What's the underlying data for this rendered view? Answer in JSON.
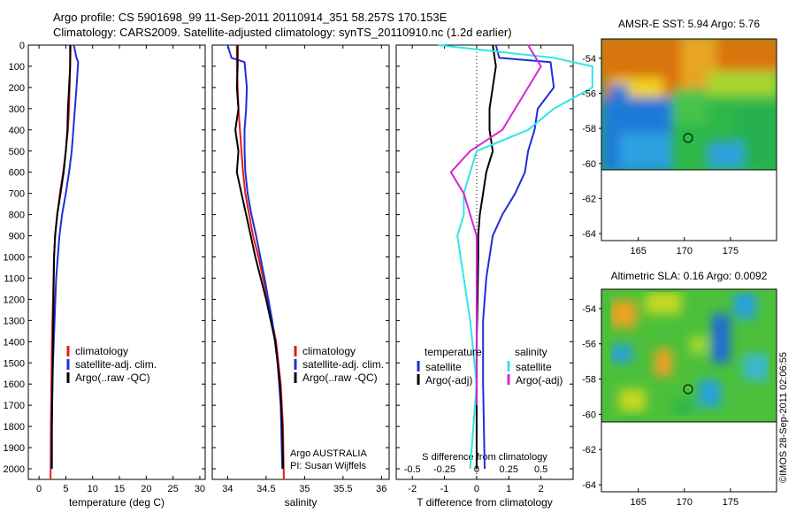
{
  "title_line1": "Argo profile: CS 5901698_99 11-Sep-2011 20110914_351 58.257S 170.153E",
  "title_line2": "Climatology: CARS2009. Satellite-adjusted climatology: synTS_20110910.nc (1.2d earlier)",
  "watermark": "©IMOS 28-Sep-2011 02:06:55",
  "colors": {
    "climatology": "#e41a1c",
    "satellite": "#1f2fd6",
    "argo": "#000000",
    "sat_salinity": "#2ee6e6",
    "argo_salinity": "#d428d4"
  },
  "chart_data": [
    {
      "type": "line",
      "id": "temperature",
      "xlabel": "temperature (deg C)",
      "xlim": [
        -2,
        31
      ],
      "ylim": [
        2050,
        0
      ],
      "y_reversed": true,
      "xticks": [
        "0",
        "5",
        "10",
        "15",
        "20",
        "25",
        "30"
      ],
      "yticks": [
        "0",
        "100",
        "200",
        "300",
        "400",
        "500",
        "600",
        "700",
        "800",
        "900",
        "1000",
        "1100",
        "1200",
        "1300",
        "1400",
        "1500",
        "1600",
        "1700",
        "1800",
        "1900",
        "2000"
      ],
      "legend": [
        "climatology",
        "satellite-adj. clim.",
        "Argo(..raw -QC)"
      ],
      "series": [
        {
          "name": "climatology",
          "color": "#e41a1c",
          "x": [
            5.9,
            5.8,
            5.7,
            5.6,
            5.4,
            5.0,
            4.5,
            3.9,
            3.4,
            3.0,
            2.8,
            2.6,
            2.4,
            2.3,
            2.2,
            2.15
          ],
          "y": [
            0,
            100,
            200,
            300,
            400,
            500,
            600,
            700,
            800,
            900,
            1000,
            1200,
            1400,
            1600,
            1800,
            2050
          ]
        },
        {
          "name": "satellite-adj. clim.",
          "color": "#1f2fd6",
          "x": [
            6.5,
            7.0,
            7.3,
            7.0,
            6.7,
            6.4,
            6.1,
            5.6,
            5.0,
            4.3,
            3.8,
            3.2,
            2.9,
            2.6,
            2.4,
            2.3
          ],
          "y": [
            0,
            60,
            80,
            200,
            300,
            400,
            500,
            600,
            700,
            800,
            900,
            1100,
            1300,
            1500,
            1700,
            2000
          ]
        },
        {
          "name": "Argo(..raw -QC)",
          "color": "#000000",
          "x": [
            5.8,
            5.8,
            5.6,
            5.4,
            5.3,
            5.0,
            4.6,
            4.0,
            3.4,
            3.0,
            2.8,
            2.7,
            2.6,
            2.5,
            2.4,
            2.4
          ],
          "y": [
            0,
            100,
            200,
            300,
            400,
            500,
            600,
            700,
            800,
            900,
            1000,
            1200,
            1400,
            1600,
            1800,
            2000
          ]
        }
      ]
    },
    {
      "type": "line",
      "id": "salinity",
      "xlabel": "salinity",
      "xlim": [
        33.8,
        36.1
      ],
      "ylim": [
        2050,
        0
      ],
      "y_reversed": true,
      "xticks": [
        "34",
        "34.5",
        "35",
        "35.5",
        "36"
      ],
      "legend": [
        "climatology",
        "satellite-adj. clim.",
        "Argo(..raw -QC)"
      ],
      "annotation": [
        "Argo AUSTRALIA",
        "PI: Susan Wijffels"
      ],
      "series": [
        {
          "name": "climatology",
          "color": "#e41a1c",
          "x": [
            34.12,
            34.12,
            34.13,
            34.14,
            34.16,
            34.18,
            34.2,
            34.23,
            34.28,
            34.33,
            34.4,
            34.52,
            34.63,
            34.69,
            34.72,
            34.73
          ],
          "y": [
            0,
            100,
            200,
            300,
            400,
            500,
            600,
            700,
            800,
            900,
            1000,
            1200,
            1400,
            1600,
            1800,
            2050
          ]
        },
        {
          "name": "satellite-adj. clim.",
          "color": "#1f2fd6",
          "x": [
            34.0,
            34.05,
            34.22,
            34.25,
            34.24,
            34.22,
            34.22,
            34.23,
            34.26,
            34.31,
            34.37,
            34.48,
            34.58,
            34.65,
            34.69,
            34.71
          ],
          "y": [
            0,
            60,
            80,
            200,
            300,
            400,
            500,
            600,
            700,
            800,
            900,
            1100,
            1300,
            1500,
            1700,
            2000
          ]
        },
        {
          "name": "Argo(..raw -QC)",
          "color": "#000000",
          "x": [
            34.13,
            34.13,
            34.12,
            34.14,
            34.1,
            34.14,
            34.12,
            34.18,
            34.24,
            34.3,
            34.36,
            34.5,
            34.62,
            34.68,
            34.71,
            34.72
          ],
          "y": [
            0,
            100,
            200,
            300,
            400,
            500,
            600,
            700,
            800,
            900,
            1000,
            1200,
            1400,
            1600,
            1800,
            2000
          ]
        }
      ]
    },
    {
      "type": "line",
      "id": "difference",
      "xlabel": "T difference from climatology",
      "x2label": "S difference from climatology",
      "xlim": [
        -2.5,
        3
      ],
      "ylim": [
        2050,
        0
      ],
      "y_reversed": true,
      "xticks": [
        "-2",
        "-1",
        "0",
        "1",
        "2"
      ],
      "x2ticks": [
        "-0.5",
        "-0.25",
        "0",
        "0.25",
        "0.5"
      ],
      "legend_headers": [
        "temperature",
        "salinity"
      ],
      "legend": [
        "satellite",
        "Argo(-adj)",
        "satellite",
        "Argo(-adj)"
      ],
      "series": [
        {
          "name": "satellite",
          "group": "temperature",
          "color": "#1f2fd6",
          "x": [
            0.6,
            0.7,
            2.3,
            2.4,
            1.9,
            1.8,
            1.6,
            1.5,
            1.2,
            0.8,
            0.5,
            0.3,
            0.2,
            0.2,
            0.25
          ],
          "y": [
            0,
            60,
            80,
            200,
            300,
            400,
            500,
            600,
            700,
            800,
            900,
            1100,
            1300,
            1600,
            2000
          ]
        },
        {
          "name": "Argo(-adj)",
          "group": "temperature",
          "color": "#000000",
          "x": [
            0.5,
            0.6,
            0.5,
            0.4,
            0.4,
            0.5,
            0.3,
            0.2,
            0.1,
            0.05,
            0.05,
            0.03,
            0.0,
            0.0,
            0.0
          ],
          "y": [
            0,
            100,
            200,
            300,
            400,
            500,
            600,
            700,
            800,
            900,
            1000,
            1200,
            1400,
            1700,
            2000
          ]
        },
        {
          "name": "satellite",
          "group": "salinity",
          "color": "#2ee6e6",
          "x": [
            -0.3,
            0.6,
            0.9,
            0.9,
            0.6,
            0.4,
            0.0,
            -0.05,
            -0.1,
            -0.1,
            -0.15,
            -0.1,
            -0.05,
            0.0,
            -0.05
          ],
          "y": [
            0,
            60,
            100,
            200,
            300,
            400,
            500,
            600,
            700,
            800,
            900,
            1100,
            1300,
            1600,
            2000
          ]
        },
        {
          "name": "Argo(-adj)",
          "group": "salinity",
          "color": "#d428d4",
          "x": [
            0.4,
            0.5,
            0.4,
            0.3,
            0.2,
            -0.05,
            -0.2,
            -0.1,
            -0.05,
            0.0,
            0.0,
            0.0,
            0.0,
            0.0
          ],
          "y": [
            0,
            100,
            200,
            300,
            400,
            500,
            600,
            700,
            800,
            900,
            1000,
            1200,
            1400,
            1700
          ]
        }
      ]
    },
    {
      "type": "heatmap",
      "id": "sst_map",
      "title": "AMSR-E SST: 5.94 Argo: 5.76",
      "xticks": [
        "165",
        "170",
        "175"
      ],
      "yticks": [
        "-54",
        "-56",
        "-58",
        "-60",
        "-62",
        "-64"
      ]
    },
    {
      "type": "heatmap",
      "id": "sla_map",
      "title": "Altimetric SLA: 0.16 Argo: 0.0092",
      "xticks": [
        "165",
        "170",
        "175"
      ],
      "yticks": [
        "-54",
        "-56",
        "-58",
        "-60",
        "-62",
        "-64"
      ]
    }
  ]
}
